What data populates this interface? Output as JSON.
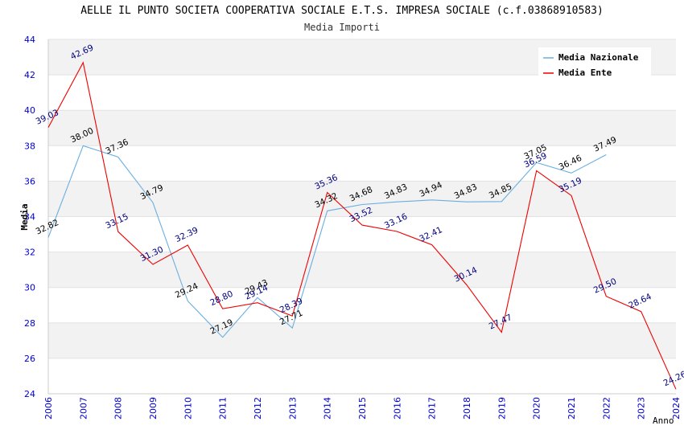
{
  "chart_data": {
    "type": "line",
    "title": "AELLE IL PUNTO SOCIETA COOPERATIVA SOCIALE E.T.S. IMPRESA SOCIALE (c.f.03868910583)",
    "subtitle": "Media Importi",
    "xlabel": "Anno",
    "ylabel": "Media",
    "ylim": [
      24,
      44
    ],
    "yticks": [
      "24",
      "26",
      "28",
      "30",
      "32",
      "34",
      "36",
      "38",
      "40",
      "42",
      "44"
    ],
    "x": [
      "2006",
      "2007",
      "2008",
      "2009",
      "2010",
      "2011",
      "2012",
      "2013",
      "2014",
      "2015",
      "2016",
      "2017",
      "2018",
      "2019",
      "2020",
      "2021",
      "2022",
      "2023",
      "2024"
    ],
    "grid": "horizontal, alternating bands",
    "legend_position": "top-right",
    "series": [
      {
        "name": "Media Nazionale",
        "color": "#6aaee0",
        "label_color": "#000000",
        "values": [
          32.82,
          38.0,
          37.36,
          34.79,
          29.24,
          27.19,
          29.43,
          27.71,
          34.32,
          34.68,
          34.83,
          34.94,
          34.83,
          34.85,
          37.05,
          36.46,
          37.49,
          null,
          null
        ],
        "labels": [
          "32.82",
          "38.00",
          "37.36",
          "34.79",
          "29.24",
          "27.19",
          "29.43",
          "27.71",
          "34.32",
          "34.68",
          "34.83",
          "34.94",
          "34.83",
          "34.85",
          "37.05",
          "36.46",
          "37.49",
          "",
          ""
        ]
      },
      {
        "name": "Media Ente",
        "color": "#ee0000",
        "label_color": "#000080",
        "values": [
          39.03,
          42.69,
          33.15,
          31.3,
          32.39,
          28.8,
          29.14,
          28.39,
          35.36,
          33.52,
          33.16,
          32.41,
          30.14,
          27.47,
          36.59,
          35.19,
          29.5,
          28.64,
          24.26
        ],
        "labels": [
          "39.03",
          "42.69",
          "33.15",
          "31.30",
          "32.39",
          "28.80",
          "29.14",
          "28.39",
          "35.36",
          "33.52",
          "33.16",
          "32.41",
          "30.14",
          "27.47",
          "36.59",
          "35.19",
          "29.50",
          "28.64",
          "24.26"
        ]
      }
    ]
  }
}
